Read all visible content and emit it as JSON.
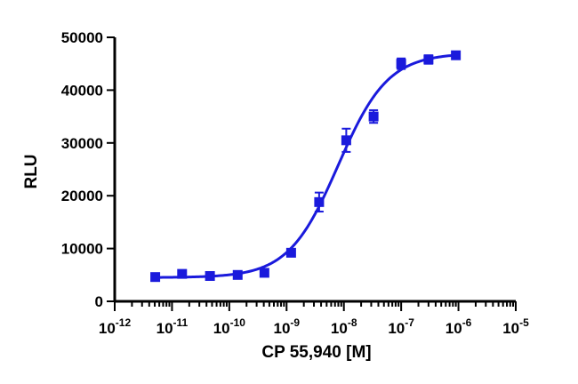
{
  "chart_data": {
    "type": "scatter",
    "title": "",
    "xlabel": "CP 55,940 [M]",
    "ylabel": "RLU",
    "x_scale": "log",
    "xlim": [
      1e-12,
      1e-05
    ],
    "ylim": [
      0,
      50000
    ],
    "x_ticks": [
      {
        "value": 1e-12,
        "base": "10",
        "exp": "-12"
      },
      {
        "value": 1e-11,
        "base": "10",
        "exp": "-11"
      },
      {
        "value": 1e-10,
        "base": "10",
        "exp": "-10"
      },
      {
        "value": 1e-09,
        "base": "10",
        "exp": "-9"
      },
      {
        "value": 1e-08,
        "base": "10",
        "exp": "-8"
      },
      {
        "value": 1e-07,
        "base": "10",
        "exp": "-7"
      },
      {
        "value": 1e-06,
        "base": "10",
        "exp": "-6"
      },
      {
        "value": 1e-05,
        "base": "10",
        "exp": "-5"
      }
    ],
    "y_ticks": [
      {
        "value": 0,
        "label": "0"
      },
      {
        "value": 10000,
        "label": "10000"
      },
      {
        "value": 20000,
        "label": "20000"
      },
      {
        "value": 30000,
        "label": "30000"
      },
      {
        "value": 40000,
        "label": "40000"
      },
      {
        "value": 50000,
        "label": "50000"
      }
    ],
    "grid": false,
    "color": "#1a1adc",
    "series": [
      {
        "x": [
          5.1e-12,
          1.5e-11,
          4.6e-11,
          1.4e-10,
          4.1e-10,
          1.2e-09,
          3.7e-09,
          1.1e-08,
          3.3e-08,
          1e-07,
          3e-07,
          9e-07
        ],
        "y": [
          4600,
          5200,
          4800,
          5000,
          5400,
          9200,
          18800,
          30500,
          35000,
          45000,
          45800,
          46600
        ],
        "err": [
          300,
          300,
          300,
          300,
          500,
          500,
          1800,
          2200,
          1200,
          1000,
          800,
          300
        ]
      }
    ],
    "fit": {
      "model": "sigmoidal dose-response",
      "bottom": 4500,
      "top": 47000,
      "log_ec50": -8.1,
      "hill": 1.0
    }
  }
}
